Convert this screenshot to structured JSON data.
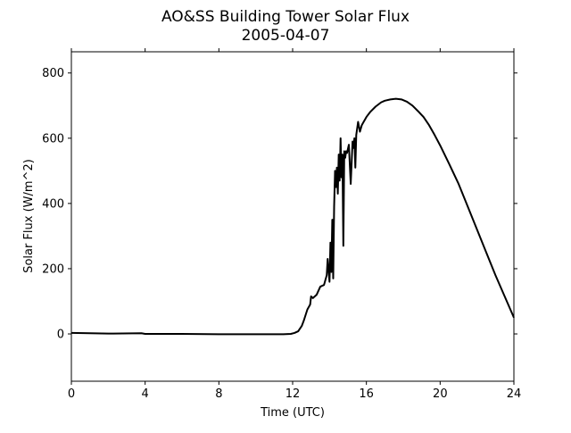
{
  "chart_data": {
    "type": "line",
    "title": "AO&SS Building Tower Solar Flux",
    "subtitle": "2005-04-07",
    "xlabel": "Time (UTC)",
    "ylabel": "Solar Flux (W/m^2)",
    "xlim": [
      0,
      24
    ],
    "ylim": [
      -145,
      865
    ],
    "xticks": [
      0,
      4,
      8,
      12,
      16,
      20,
      24
    ],
    "xtick_labels": [
      "0",
      "4",
      "8",
      "12",
      "16",
      "20",
      "24"
    ],
    "yticks": [
      0,
      200,
      400,
      600,
      800
    ],
    "ytick_labels": [
      "0",
      "200",
      "400",
      "600",
      "800"
    ],
    "grid": false,
    "legend": "none",
    "series": [
      {
        "color": "#000000",
        "x": [
          0,
          2,
          3.8,
          4,
          5,
          6,
          8,
          10,
          11.5,
          11.9,
          12.1,
          12.3,
          12.5,
          12.6,
          12.8,
          12.95,
          13.0,
          13.1,
          13.3,
          13.5,
          13.7,
          13.85,
          13.9,
          14.0,
          14.05,
          14.1,
          14.15,
          14.2,
          14.25,
          14.3,
          14.35,
          14.4,
          14.45,
          14.5,
          14.55,
          14.6,
          14.65,
          14.7,
          14.75,
          14.8,
          14.85,
          14.9,
          14.95,
          15.05,
          15.15,
          15.25,
          15.3,
          15.35,
          15.4,
          15.45,
          15.55,
          15.65,
          15.75,
          15.8,
          15.9,
          16.0,
          16.2,
          16.5,
          16.8,
          17.0,
          17.3,
          17.6,
          17.9,
          18.2,
          18.5,
          18.8,
          19.1,
          19.4,
          19.7,
          20.0,
          20.5,
          21.0,
          21.5,
          22.0,
          22.5,
          23.0,
          23.5,
          24.0
        ],
        "y": [
          3,
          1,
          2,
          0,
          0,
          0,
          -1,
          -1,
          -1,
          0,
          3,
          8,
          25,
          40,
          75,
          90,
          115,
          110,
          120,
          145,
          150,
          180,
          230,
          160,
          280,
          190,
          350,
          170,
          390,
          500,
          450,
          510,
          430,
          550,
          470,
          600,
          480,
          550,
          270,
          560,
          540,
          560,
          555,
          580,
          460,
          590,
          570,
          600,
          510,
          610,
          650,
          620,
          640,
          645,
          655,
          665,
          680,
          697,
          710,
          715,
          719,
          721,
          719,
          712,
          700,
          683,
          665,
          640,
          610,
          578,
          520,
          460,
          390,
          320,
          250,
          180,
          115,
          50
        ]
      }
    ]
  }
}
